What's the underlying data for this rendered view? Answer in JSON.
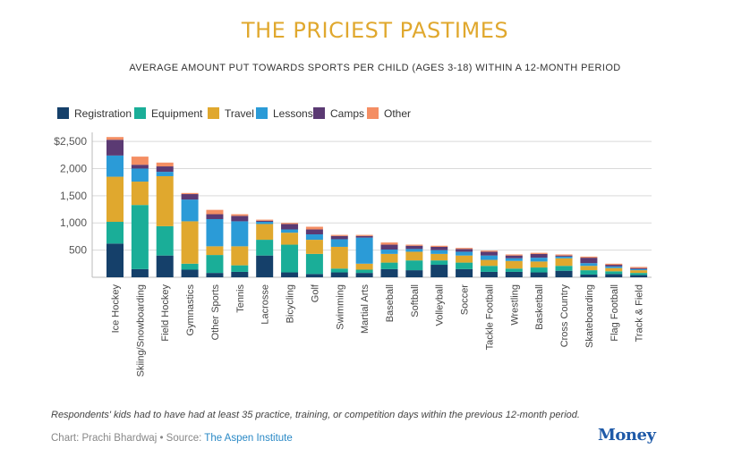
{
  "title": "THE PRICIEST PASTIMES",
  "subtitle": "AVERAGE AMOUNT PUT TOWARDS SPORTS PER CHILD (AGES 3-18) WITHIN A 12-MONTH PERIOD",
  "footnote": "Respondents' kids had to have had at least 35 practice, training, or competition days within the previous 12-month period.",
  "credit_prefix": "Chart: Prachi Bhardwaj • Source: ",
  "credit_source": "The Aspen Institute",
  "logo_text": "Money",
  "chart_data": {
    "type": "bar",
    "stacked": true,
    "categories": [
      "Ice Hockey",
      "Skiing/Snowboarding",
      "Field Hockey",
      "Gymnastics",
      "Other Sports",
      "Tennis",
      "Lacrosse",
      "Bicycling",
      "Golf",
      "Swimming",
      "Martial Arts",
      "Baseball",
      "Softball",
      "Volleyball",
      "Soccer",
      "Tackle Football",
      "Wrestling",
      "Basketball",
      "Cross Country",
      "Skateboarding",
      "Flag Football",
      "Track & Field"
    ],
    "series": [
      {
        "name": "Registration",
        "color": "#15406a",
        "values": [
          620,
          150,
          400,
          140,
          80,
          100,
          400,
          90,
          60,
          90,
          80,
          150,
          130,
          230,
          150,
          100,
          100,
          90,
          120,
          50,
          60,
          40
        ]
      },
      {
        "name": "Equipment",
        "color": "#1aae98",
        "values": [
          400,
          1180,
          540,
          110,
          330,
          120,
          290,
          510,
          370,
          70,
          60,
          120,
          180,
          80,
          120,
          110,
          60,
          90,
          90,
          80,
          50,
          40
        ]
      },
      {
        "name": "Travel",
        "color": "#e0a82e",
        "values": [
          830,
          430,
          920,
          780,
          160,
          350,
          290,
          220,
          260,
          400,
          110,
          160,
          160,
          120,
          130,
          110,
          140,
          110,
          140,
          80,
          60,
          50
        ]
      },
      {
        "name": "Lessons",
        "color": "#2b9bd7",
        "values": [
          390,
          240,
          80,
          400,
          500,
          460,
          40,
          60,
          100,
          140,
          480,
          80,
          50,
          70,
          70,
          80,
          50,
          70,
          30,
          50,
          30,
          20
        ]
      },
      {
        "name": "Camps",
        "color": "#5b3a73",
        "values": [
          290,
          70,
          100,
          100,
          90,
          100,
          20,
          100,
          90,
          60,
          30,
          90,
          60,
          60,
          50,
          70,
          50,
          70,
          20,
          100,
          30,
          20
        ]
      },
      {
        "name": "Other",
        "color": "#f48e63",
        "values": [
          50,
          150,
          70,
          20,
          80,
          30,
          20,
          20,
          50,
          20,
          20,
          40,
          20,
          20,
          20,
          20,
          20,
          20,
          20,
          20,
          20,
          20
        ]
      }
    ],
    "yticks": [
      500,
      1000,
      1500,
      2000,
      2500
    ],
    "ytick_labels": [
      "500",
      "1,000",
      "1,500",
      "2,000",
      "$2,500"
    ],
    "ylim": [
      0,
      2600
    ],
    "legend_position": "top-left",
    "grid": true
  }
}
